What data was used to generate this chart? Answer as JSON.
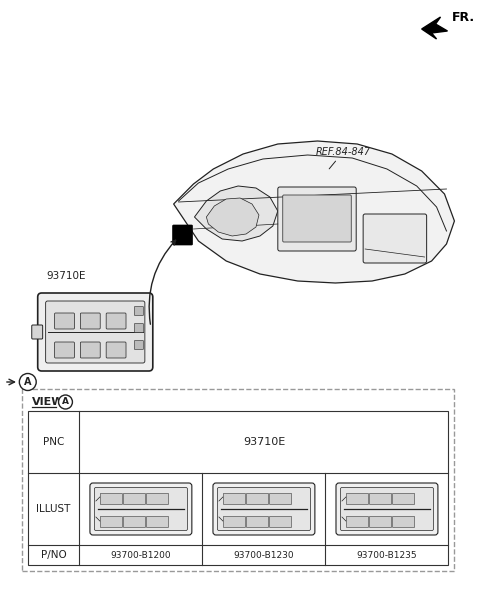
{
  "bg_color": "#ffffff",
  "line_color": "#222222",
  "fig_width": 4.8,
  "fig_height": 5.89,
  "fr_label": "FR.",
  "ref_label": "REF.84-847",
  "part_label_top": "93710E",
  "circle_label": "A",
  "view_label": "VIEW",
  "pnc_label": "PNC",
  "pnc_value": "93710E",
  "illust_label": "ILLUST",
  "pno_label": "P/NO",
  "part_numbers": [
    "93700-B1200",
    "93700-B1230",
    "93700-B1235"
  ],
  "dashed_border_color": "#999999",
  "table_line_color": "#333333"
}
